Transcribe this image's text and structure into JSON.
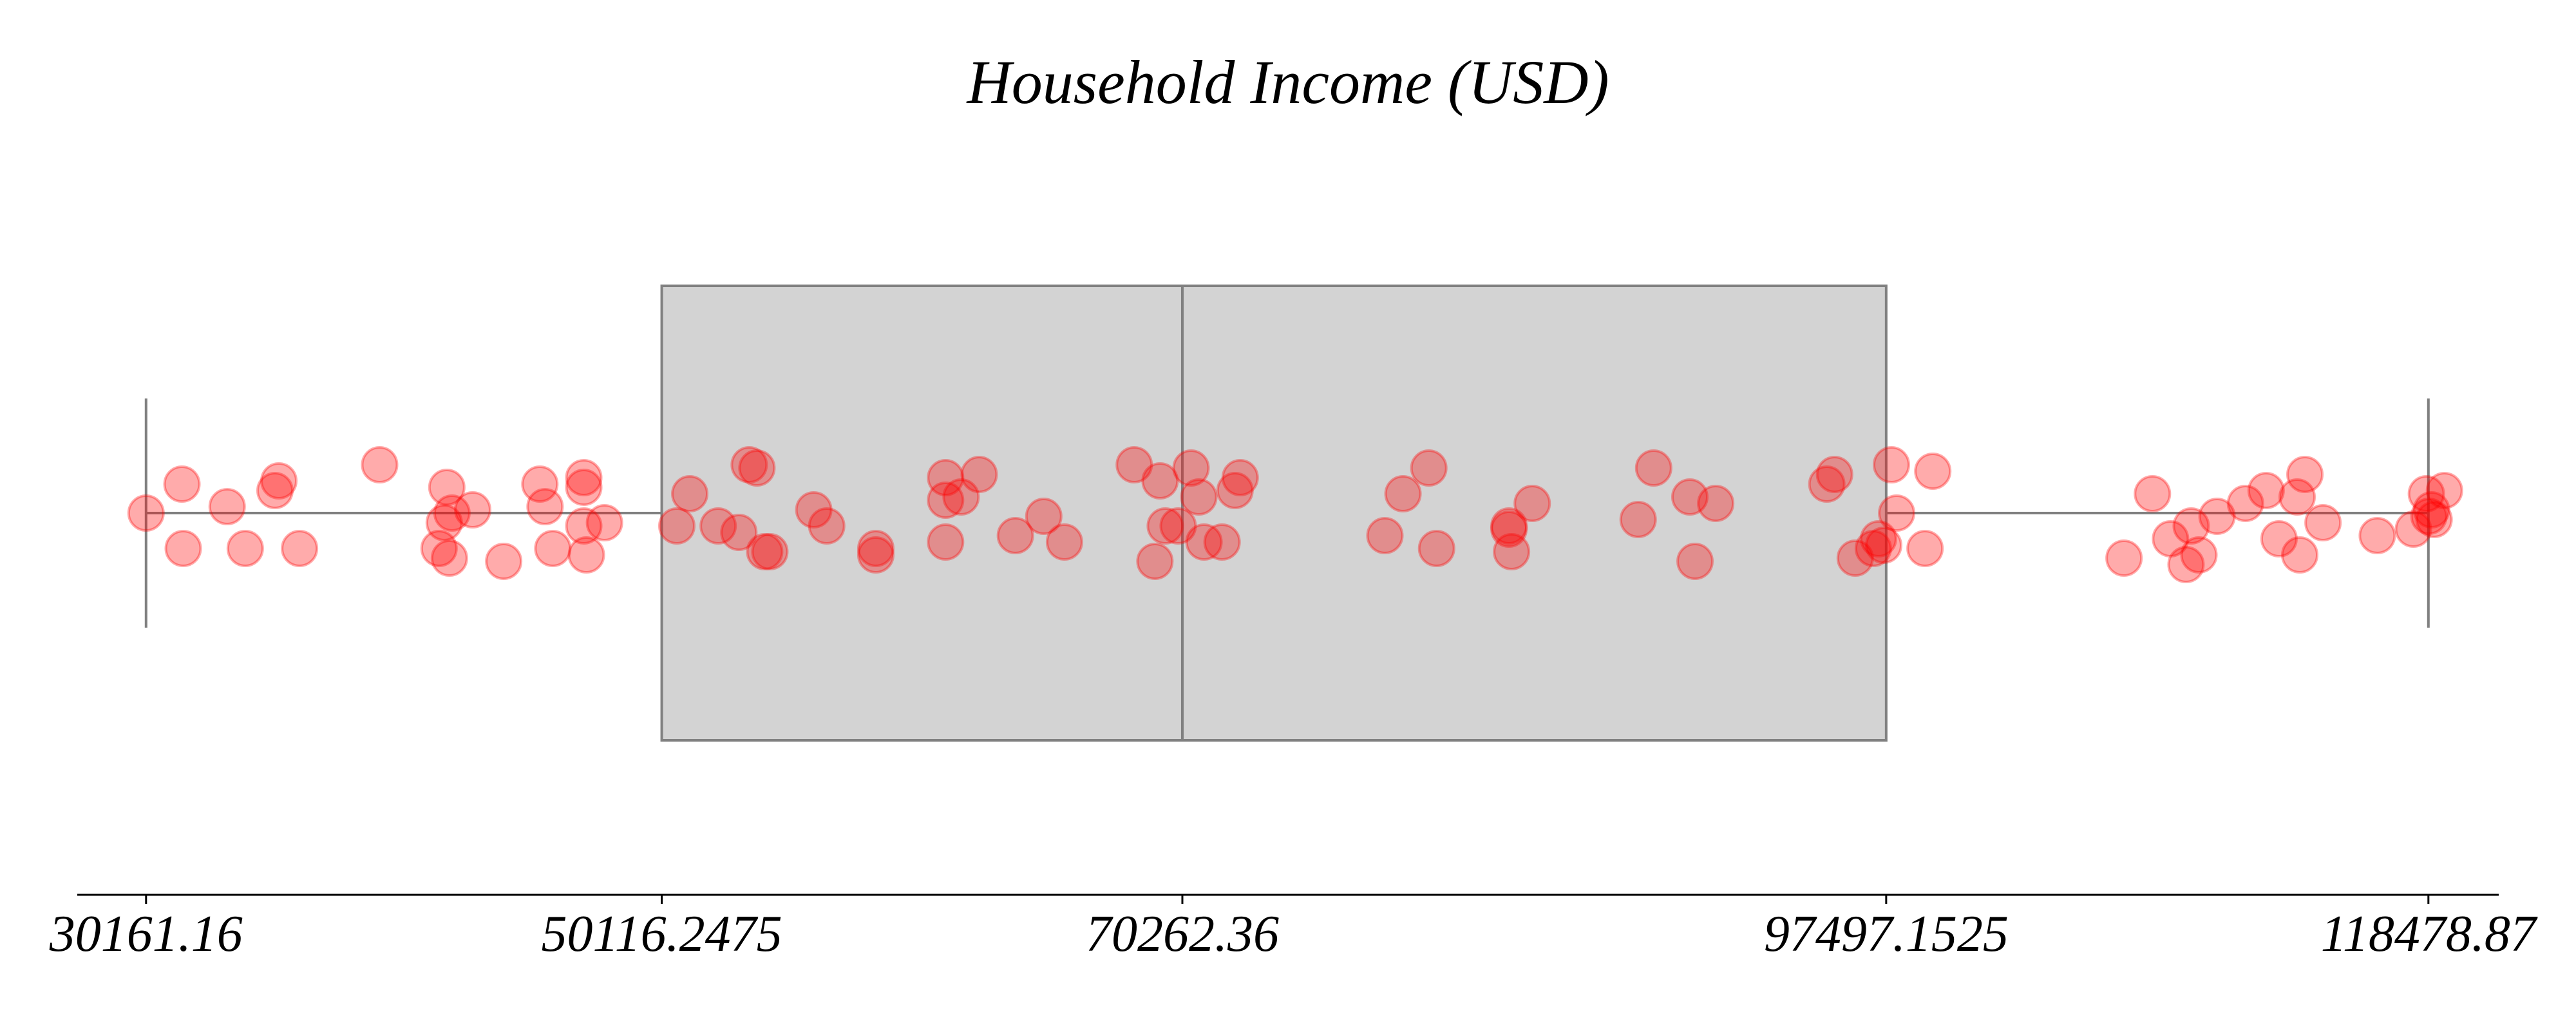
{
  "chart_data": {
    "type": "boxplot",
    "title": "Household Income (USD)",
    "xlabel": "",
    "ylabel": "",
    "orientation": "horizontal",
    "xlim": [
      27500,
      121200
    ],
    "grid": false,
    "legend": "none",
    "box": {
      "min": 30161.16,
      "q1": 50116.2475,
      "median": 70262.36,
      "q3": 97497.1525,
      "max": 118478.87
    },
    "ticks": [
      {
        "value": 30161.16,
        "label": "30161.16"
      },
      {
        "value": 50116.2475,
        "label": "50116.2475"
      },
      {
        "value": 70262.36,
        "label": "70262.36"
      },
      {
        "value": 97497.1525,
        "label": "97497.1525"
      },
      {
        "value": 118478.87,
        "label": "118478.87"
      }
    ],
    "points": [
      {
        "x": 30161.16,
        "jitter": 0.0
      },
      {
        "x": 31550,
        "jitter": 0.09
      },
      {
        "x": 31600,
        "jitter": -0.11
      },
      {
        "x": 33300,
        "jitter": 0.02
      },
      {
        "x": 34000,
        "jitter": -0.11
      },
      {
        "x": 35150,
        "jitter": 0.07
      },
      {
        "x": 35300,
        "jitter": 0.1
      },
      {
        "x": 36100,
        "jitter": -0.11
      },
      {
        "x": 39200,
        "jitter": 0.15
      },
      {
        "x": 41500,
        "jitter": -0.11
      },
      {
        "x": 41700,
        "jitter": -0.03
      },
      {
        "x": 41800,
        "jitter": 0.08
      },
      {
        "x": 41900,
        "jitter": -0.14
      },
      {
        "x": 42000,
        "jitter": 0.0
      },
      {
        "x": 42800,
        "jitter": 0.01
      },
      {
        "x": 44000,
        "jitter": -0.15
      },
      {
        "x": 45400,
        "jitter": 0.09
      },
      {
        "x": 45600,
        "jitter": 0.02
      },
      {
        "x": 45900,
        "jitter": -0.11
      },
      {
        "x": 47100,
        "jitter": 0.11
      },
      {
        "x": 47100,
        "jitter": 0.08
      },
      {
        "x": 47100,
        "jitter": -0.04
      },
      {
        "x": 47200,
        "jitter": -0.13
      },
      {
        "x": 47900,
        "jitter": -0.03
      },
      {
        "x": 50700,
        "jitter": -0.04
      },
      {
        "x": 51200,
        "jitter": 0.06
      },
      {
        "x": 52300,
        "jitter": -0.04
      },
      {
        "x": 53100,
        "jitter": -0.06
      },
      {
        "x": 53500,
        "jitter": 0.15
      },
      {
        "x": 53800,
        "jitter": 0.14
      },
      {
        "x": 54100,
        "jitter": -0.12
      },
      {
        "x": 54300,
        "jitter": -0.12
      },
      {
        "x": 56000,
        "jitter": 0.01
      },
      {
        "x": 56500,
        "jitter": -0.04
      },
      {
        "x": 58400,
        "jitter": -0.11
      },
      {
        "x": 58400,
        "jitter": -0.13
      },
      {
        "x": 61100,
        "jitter": 0.11
      },
      {
        "x": 61100,
        "jitter": 0.04
      },
      {
        "x": 61100,
        "jitter": -0.09
      },
      {
        "x": 61700,
        "jitter": 0.05
      },
      {
        "x": 62400,
        "jitter": 0.12
      },
      {
        "x": 63800,
        "jitter": -0.07
      },
      {
        "x": 64900,
        "jitter": -0.01
      },
      {
        "x": 65700,
        "jitter": -0.09
      },
      {
        "x": 68400,
        "jitter": 0.15
      },
      {
        "x": 69200,
        "jitter": -0.15
      },
      {
        "x": 69400,
        "jitter": 0.1
      },
      {
        "x": 69600,
        "jitter": -0.04
      },
      {
        "x": 70100,
        "jitter": -0.04
      },
      {
        "x": 70600,
        "jitter": 0.14
      },
      {
        "x": 70900,
        "jitter": 0.05
      },
      {
        "x": 71100,
        "jitter": -0.09
      },
      {
        "x": 71800,
        "jitter": -0.09
      },
      {
        "x": 72300,
        "jitter": 0.07
      },
      {
        "x": 72500,
        "jitter": 0.11
      },
      {
        "x": 78100,
        "jitter": -0.07
      },
      {
        "x": 78800,
        "jitter": 0.06
      },
      {
        "x": 79800,
        "jitter": 0.14
      },
      {
        "x": 80100,
        "jitter": -0.11
      },
      {
        "x": 82900,
        "jitter": -0.05
      },
      {
        "x": 82900,
        "jitter": -0.04
      },
      {
        "x": 83000,
        "jitter": -0.12
      },
      {
        "x": 83800,
        "jitter": 0.03
      },
      {
        "x": 87900,
        "jitter": -0.02
      },
      {
        "x": 88500,
        "jitter": 0.14
      },
      {
        "x": 89900,
        "jitter": 0.05
      },
      {
        "x": 90100,
        "jitter": -0.15
      },
      {
        "x": 90900,
        "jitter": 0.03
      },
      {
        "x": 95200,
        "jitter": 0.09
      },
      {
        "x": 95500,
        "jitter": 0.12
      },
      {
        "x": 96300,
        "jitter": -0.14
      },
      {
        "x": 97000,
        "jitter": -0.11
      },
      {
        "x": 97200,
        "jitter": -0.08
      },
      {
        "x": 97400,
        "jitter": -0.1
      },
      {
        "x": 97700,
        "jitter": 0.15
      },
      {
        "x": 97900,
        "jitter": 0.0
      },
      {
        "x": 99000,
        "jitter": -0.11
      },
      {
        "x": 99300,
        "jitter": 0.13
      },
      {
        "x": 106700,
        "jitter": -0.14
      },
      {
        "x": 107800,
        "jitter": 0.06
      },
      {
        "x": 108500,
        "jitter": -0.08
      },
      {
        "x": 109100,
        "jitter": -0.16
      },
      {
        "x": 109300,
        "jitter": -0.04
      },
      {
        "x": 109600,
        "jitter": -0.13
      },
      {
        "x": 110300,
        "jitter": -0.01
      },
      {
        "x": 111400,
        "jitter": 0.03
      },
      {
        "x": 112200,
        "jitter": 0.07
      },
      {
        "x": 112700,
        "jitter": -0.08
      },
      {
        "x": 113400,
        "jitter": 0.05
      },
      {
        "x": 113500,
        "jitter": -0.13
      },
      {
        "x": 113700,
        "jitter": 0.12
      },
      {
        "x": 114400,
        "jitter": -0.03
      },
      {
        "x": 116500,
        "jitter": -0.07
      },
      {
        "x": 117900,
        "jitter": -0.05
      },
      {
        "x": 118400,
        "jitter": 0.06
      },
      {
        "x": 118500,
        "jitter": -0.01
      },
      {
        "x": 118600,
        "jitter": 0.01
      },
      {
        "x": 118700,
        "jitter": -0.02
      },
      {
        "x": 119100,
        "jitter": 0.07
      }
    ]
  },
  "colors": {
    "box_fill": "#d3d3d3",
    "box_edge": "#808080",
    "point_fill": "#ff0000",
    "axis": "#000000",
    "text": "#000000"
  }
}
